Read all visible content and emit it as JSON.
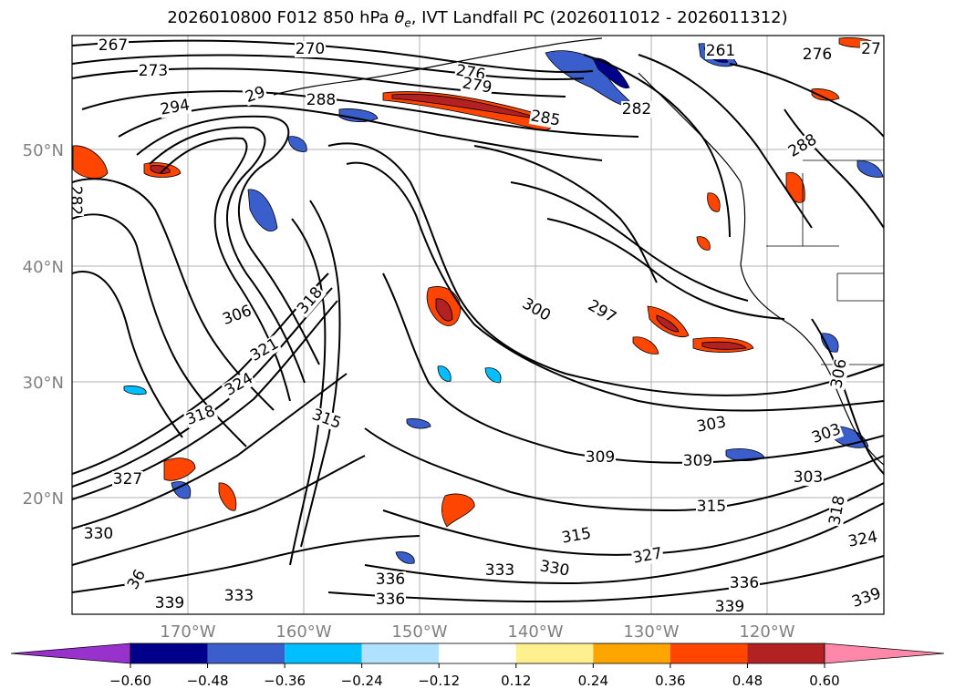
{
  "title": {
    "prefix": "2026010800 F012 850 hPa ",
    "theta_symbol": "θ",
    "theta_subscript": "e",
    "suffix": ", IVT Landfall PC (2026011012 - 2026011312)"
  },
  "map": {
    "projection": "lat-lon",
    "extent": {
      "lon": [
        -180,
        -110
      ],
      "lat": [
        10,
        60
      ]
    },
    "lat_labels": [
      "50°N",
      "40°N",
      "30°N",
      "20°N"
    ],
    "lon_labels": [
      "170°W",
      "160°W",
      "150°W",
      "140°W",
      "130°W",
      "120°W"
    ],
    "grid": true,
    "contour_color": "#000000",
    "contour_labels": [
      {
        "text": "267"
      },
      {
        "text": "270"
      },
      {
        "text": "273"
      },
      {
        "text": "276"
      },
      {
        "text": "279"
      },
      {
        "text": "261"
      },
      {
        "text": "27"
      },
      {
        "text": "276"
      },
      {
        "text": "294"
      },
      {
        "text": "29"
      },
      {
        "text": "288"
      },
      {
        "text": "285"
      },
      {
        "text": "282"
      },
      {
        "text": "282"
      },
      {
        "text": "288"
      },
      {
        "text": "318"
      },
      {
        "text": "306"
      },
      {
        "text": "300"
      },
      {
        "text": "297"
      },
      {
        "text": "321"
      },
      {
        "text": "324"
      },
      {
        "text": "318"
      },
      {
        "text": "315"
      },
      {
        "text": "303"
      },
      {
        "text": "309"
      },
      {
        "text": "309"
      },
      {
        "text": "303"
      },
      {
        "text": "303"
      },
      {
        "text": "315"
      },
      {
        "text": "315"
      },
      {
        "text": "318"
      },
      {
        "text": "327"
      },
      {
        "text": "327"
      },
      {
        "text": "324"
      },
      {
        "text": "336"
      },
      {
        "text": "333"
      },
      {
        "text": "330"
      },
      {
        "text": "336"
      },
      {
        "text": "336"
      },
      {
        "text": "339"
      },
      {
        "text": "333"
      },
      {
        "text": "339"
      },
      {
        "text": "339"
      },
      {
        "text": "36"
      },
      {
        "text": "330"
      },
      {
        "text": "306"
      }
    ]
  },
  "colorbar": {
    "ticks": [
      "−0.60",
      "−0.48",
      "−0.36",
      "−0.24",
      "−0.12",
      "0.12",
      "0.24",
      "0.36",
      "0.48",
      "0.60"
    ],
    "boundaries": [
      -0.6,
      -0.48,
      -0.36,
      -0.24,
      -0.12,
      0.12,
      0.24,
      0.36,
      0.48,
      0.6
    ],
    "colors": {
      "under": "#9932cc",
      "bins": [
        "#00008b",
        "#3a5fcd",
        "#00bfff",
        "#b0e2ff",
        "#ffffff",
        "#fff08f",
        "#ffa500",
        "#ff4500",
        "#b22222"
      ],
      "over": "#ff88aa"
    },
    "extend": "both"
  }
}
